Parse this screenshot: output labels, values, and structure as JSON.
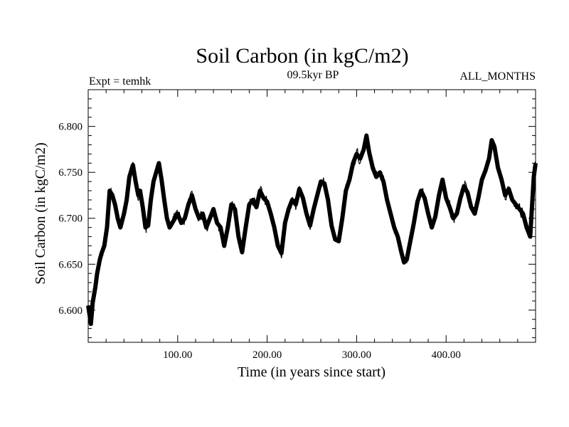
{
  "chart_data": {
    "type": "line",
    "title": "Soil Carbon (in kgC/m2)",
    "subtitle": "09.5kyr BP",
    "left_note": "Expt = temhk",
    "right_note": "ALL_MONTHS",
    "xlabel": "Time (in years since start)",
    "ylabel": "Soil Carbon (in kgC/m2)",
    "xlim": [
      0,
      500
    ],
    "ylim": [
      6.565,
      6.84
    ],
    "x_ticks": [
      100,
      200,
      300,
      400
    ],
    "x_tick_labels": [
      "100.00",
      "200.00",
      "300.00",
      "400.00"
    ],
    "y_ticks": [
      6.6,
      6.65,
      6.7,
      6.75,
      6.8
    ],
    "y_tick_labels": [
      "6.600",
      "6.650",
      "6.700",
      "6.750",
      "6.800"
    ],
    "grid": false,
    "series": [
      {
        "name": "Soil Carbon",
        "x": [
          0,
          3,
          5,
          8,
          10,
          13,
          15,
          18,
          21,
          24,
          27,
          30,
          33,
          36,
          40,
          43,
          46,
          50,
          53,
          56,
          58,
          61,
          64,
          67,
          70,
          73,
          76,
          79,
          82,
          85,
          88,
          91,
          94,
          97,
          100,
          104,
          108,
          112,
          116,
          120,
          124,
          128,
          132,
          136,
          140,
          144,
          148,
          152,
          156,
          160,
          164,
          168,
          172,
          176,
          180,
          184,
          188,
          192,
          196,
          200,
          204,
          208,
          212,
          216,
          220,
          224,
          228,
          232,
          236,
          240,
          244,
          248,
          252,
          256,
          260,
          264,
          268,
          272,
          276,
          280,
          284,
          288,
          292,
          296,
          300,
          304,
          308,
          311,
          314,
          318,
          322,
          326,
          330,
          334,
          338,
          342,
          346,
          350,
          353,
          356,
          360,
          364,
          368,
          372,
          376,
          380,
          384,
          388,
          392,
          396,
          400,
          404,
          408,
          412,
          416,
          420,
          424,
          428,
          432,
          436,
          440,
          444,
          448,
          451,
          454,
          458,
          462,
          466,
          470,
          474,
          478,
          482,
          486,
          490,
          494,
          498,
          500
        ],
        "y": [
          6.605,
          6.585,
          6.608,
          6.625,
          6.64,
          6.655,
          6.662,
          6.67,
          6.69,
          6.73,
          6.725,
          6.715,
          6.7,
          6.69,
          6.705,
          6.72,
          6.745,
          6.758,
          6.74,
          6.725,
          6.73,
          6.712,
          6.69,
          6.692,
          6.72,
          6.74,
          6.75,
          6.76,
          6.742,
          6.72,
          6.7,
          6.69,
          6.695,
          6.7,
          6.705,
          6.695,
          6.7,
          6.715,
          6.725,
          6.71,
          6.7,
          6.705,
          6.69,
          6.7,
          6.71,
          6.695,
          6.69,
          6.67,
          6.69,
          6.715,
          6.71,
          6.68,
          6.663,
          6.69,
          6.715,
          6.72,
          6.712,
          6.73,
          6.722,
          6.718,
          6.705,
          6.69,
          6.67,
          6.662,
          6.695,
          6.71,
          6.72,
          6.715,
          6.732,
          6.722,
          6.705,
          6.692,
          6.71,
          6.725,
          6.74,
          6.738,
          6.72,
          6.692,
          6.677,
          6.675,
          6.7,
          6.73,
          6.742,
          6.76,
          6.77,
          6.765,
          6.775,
          6.79,
          6.772,
          6.755,
          6.745,
          6.75,
          6.74,
          6.72,
          6.705,
          6.69,
          6.68,
          6.663,
          6.652,
          6.655,
          6.675,
          6.695,
          6.718,
          6.73,
          6.722,
          6.705,
          6.69,
          6.702,
          6.725,
          6.742,
          6.722,
          6.712,
          6.7,
          6.705,
          6.722,
          6.735,
          6.728,
          6.712,
          6.705,
          6.722,
          6.742,
          6.752,
          6.765,
          6.785,
          6.778,
          6.755,
          6.742,
          6.725,
          6.732,
          6.72,
          6.715,
          6.71,
          6.705,
          6.69,
          6.68,
          6.745,
          6.76
        ]
      }
    ]
  }
}
